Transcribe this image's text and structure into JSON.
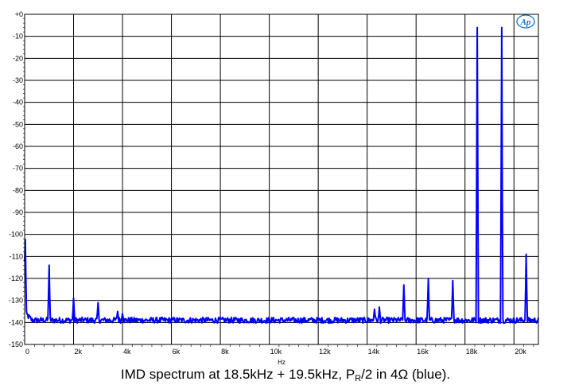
{
  "chart_data": {
    "type": "line",
    "title": "",
    "xlabel": "Hz",
    "ylabel": "",
    "xlim": [
      0,
      21000
    ],
    "ylim": [
      -150,
      0
    ],
    "grid": true,
    "y_ticks": [
      0,
      -10,
      -20,
      -30,
      -40,
      -50,
      -60,
      -70,
      -80,
      -90,
      -100,
      -110,
      -120,
      -130,
      -140,
      -150
    ],
    "y_tick_labels": [
      "+0",
      "-10",
      "-20",
      "-30",
      "-40",
      "-50",
      "-60",
      "-70",
      "-80",
      "-90",
      "-100",
      "-110",
      "-120",
      "-130",
      "-140",
      "-150"
    ],
    "x_ticks": [
      0,
      2000,
      4000,
      6000,
      8000,
      10000,
      12000,
      14000,
      16000,
      18000,
      20000
    ],
    "x_tick_labels": [
      "0",
      "2k",
      "4k",
      "6k",
      "8k",
      "10k",
      "12k",
      "14k",
      "16k",
      "18k",
      "20k"
    ],
    "noise_floor": -139,
    "series": [
      {
        "color": "#0000ff",
        "peaks": [
          {
            "x": 20,
            "y": -99
          },
          {
            "x": 1000,
            "y": -114
          },
          {
            "x": 2000,
            "y": -129
          },
          {
            "x": 3000,
            "y": -131
          },
          {
            "x": 3800,
            "y": -135
          },
          {
            "x": 4000,
            "y": -136
          },
          {
            "x": 14300,
            "y": -134
          },
          {
            "x": 14500,
            "y": -133
          },
          {
            "x": 15500,
            "y": -123
          },
          {
            "x": 16500,
            "y": -120
          },
          {
            "x": 17500,
            "y": -121
          },
          {
            "x": 18500,
            "y": -6
          },
          {
            "x": 19500,
            "y": -6
          },
          {
            "x": 20500,
            "y": -109
          }
        ]
      }
    ]
  },
  "logo": {
    "text": "Ap",
    "color": "#1a6fd0"
  },
  "caption": {
    "main": "IMD spectrum at 18.5kHz + 19.5kHz, P",
    "subscript": "R",
    "rest": "/2 in 4Ω (blue)."
  }
}
